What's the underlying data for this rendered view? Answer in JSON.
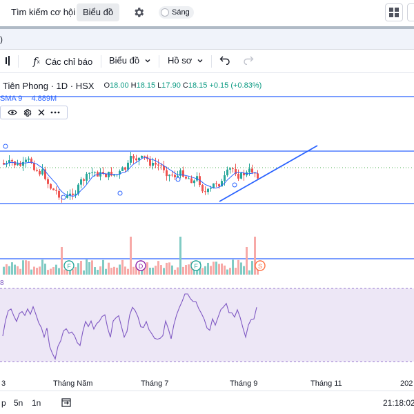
{
  "topbar": {
    "nav_screener": "Tìm kiếm cơ hội",
    "nav_chart": "Biểu đồ",
    "theme_toggle_label": "Sáng"
  },
  "tabstrip": {
    "fragment": ")"
  },
  "toolbar": {
    "indicators": "Các chỉ báo",
    "chart_type": "Biểu đồ",
    "profile": "Hồ sơ"
  },
  "legend": {
    "symbol": "Tiên Phong · 1D · HSX",
    "open_label": "O",
    "open": "18.00",
    "high_label": "H",
    "high": "18.15",
    "low_label": "L",
    "low": "17.90",
    "close_label": "C",
    "close": "18.15",
    "change": "+0.15 (+0.83%)",
    "sma_label": "SMA 9",
    "sma_value": "4.889M"
  },
  "rsi": {
    "label_fragment": "8"
  },
  "x_axis": [
    "3",
    "Tháng Năm",
    "Tháng 7",
    "Tháng 9",
    "Tháng 11",
    "202"
  ],
  "bottombar": {
    "range_1": "p",
    "range_2": "5n",
    "range_3": "1n",
    "clock": "21:18:02"
  },
  "event_markers": [
    "F",
    "D",
    "F",
    "S"
  ],
  "colors": {
    "up": "#26a69a",
    "down": "#ef5350",
    "drawing": "#2962ff",
    "sma": "#2962ff",
    "rsi": "#7e57c2",
    "rsi_band": "#ede7f6"
  }
}
